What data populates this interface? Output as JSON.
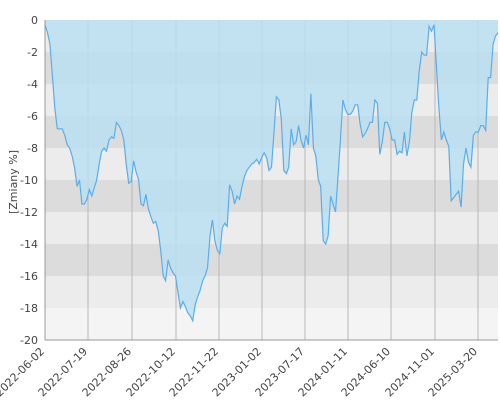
{
  "chart_data": {
    "type": "area",
    "title": "",
    "xlabel": "",
    "ylabel": "[Zmiany %]",
    "ylim": [
      -20,
      0
    ],
    "y_ticks": [
      0,
      -2,
      -4,
      -6,
      -8,
      -10,
      -12,
      -14,
      -16,
      -18,
      -20
    ],
    "x_tick_labels": [
      "2022-06-02",
      "2022-07-19",
      "2022-08-26",
      "2022-10-12",
      "2022-11-22",
      "2023-01-02",
      "2023-07-17",
      "2024-01-11",
      "2024-06-10",
      "2024-11-01",
      "2025-03-20"
    ],
    "grid": "vertical lines at date ticks, alternating horizontal bands",
    "colors": {
      "line": "#5aaee8",
      "fill": "#b8e0f2",
      "band_dark": "#dcdcdc",
      "band_light": "#ececec",
      "band_bottom": "#f4f4f4",
      "grid": "#b8b8b8",
      "axis": "#999999"
    },
    "series": [
      {
        "values": [
          -0.3,
          -0.8,
          -1.5,
          -3.5,
          -5.5,
          -6.8,
          -6.8,
          -6.8,
          -7.2,
          -7.8,
          -8.0,
          -8.5,
          -9.2,
          -10.4,
          -10.0,
          -11.5,
          -11.5,
          -11.2,
          -10.6,
          -11.0,
          -10.5,
          -10.0,
          -9.0,
          -8.2,
          -8.0,
          -8.2,
          -7.5,
          -7.3,
          -7.4,
          -6.4,
          -6.6,
          -6.9,
          -7.5,
          -9.0,
          -10.2,
          -10.1,
          -8.8,
          -9.5,
          -10.0,
          -11.5,
          -11.6,
          -10.9,
          -11.8,
          -12.3,
          -12.7,
          -12.6,
          -13.2,
          -14.4,
          -16.0,
          -16.3,
          -15.0,
          -15.5,
          -15.8,
          -16.0,
          -17.0,
          -18.0,
          -17.6,
          -17.9,
          -18.3,
          -18.5,
          -18.8,
          -17.8,
          -17.3,
          -16.9,
          -16.3,
          -16.0,
          -15.5,
          -13.5,
          -12.5,
          -13.8,
          -14.4,
          -14.6,
          -13.0,
          -12.7,
          -12.9,
          -10.3,
          -10.7,
          -11.5,
          -11.0,
          -11.2,
          -10.4,
          -9.8,
          -9.4,
          -9.2,
          -9.0,
          -8.9,
          -8.7,
          -9.0,
          -8.6,
          -8.3,
          -8.6,
          -9.4,
          -9.2,
          -7.0,
          -4.8,
          -5.0,
          -6.2,
          -9.4,
          -9.6,
          -9.2,
          -6.8,
          -7.8,
          -7.6,
          -6.6,
          -7.5,
          -8.0,
          -7.2,
          -7.8,
          -4.6,
          -8.0,
          -8.5,
          -10.0,
          -10.4,
          -13.8,
          -14.0,
          -13.5,
          -11.0,
          -11.5,
          -12.0,
          -9.8,
          -7.5,
          -5.0,
          -5.6,
          -5.9,
          -5.9,
          -5.7,
          -5.3,
          -5.3,
          -6.5,
          -7.3,
          -7.1,
          -6.8,
          -6.4,
          -6.4,
          -5.0,
          -5.2,
          -8.4,
          -7.6,
          -6.4,
          -6.4,
          -6.8,
          -7.5,
          -7.5,
          -8.4,
          -8.2,
          -8.3,
          -7.0,
          -8.5,
          -7.6,
          -5.8,
          -5.0,
          -5.0,
          -3.2,
          -2.0,
          -2.2,
          -2.2,
          -0.4,
          -0.7,
          -0.3,
          -3.0,
          -5.5,
          -7.5,
          -7.0,
          -7.5,
          -7.9,
          -11.3,
          -11.1,
          -10.9,
          -10.7,
          -11.7,
          -9.0,
          -8.0,
          -8.9,
          -9.2,
          -7.2,
          -7.0,
          -7.0,
          -6.6,
          -6.6,
          -6.9,
          -3.6,
          -3.6,
          -1.5,
          -1.0,
          -0.8
        ]
      }
    ]
  }
}
